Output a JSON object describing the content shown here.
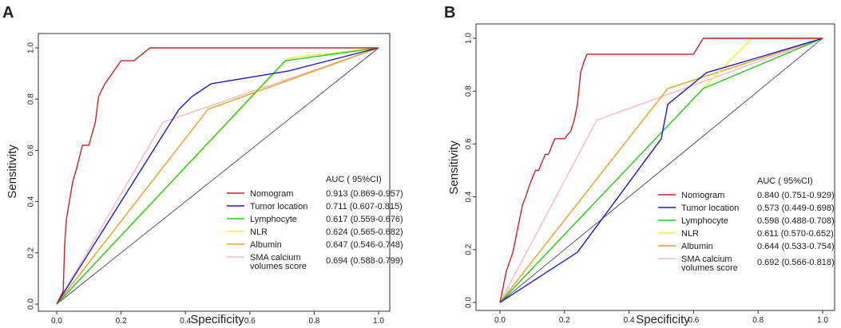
{
  "chart_data": [
    {
      "type": "line",
      "panel_label": "A",
      "xlabel": "Specificity",
      "ylabel": "Sensitivity",
      "xlim": [
        0,
        1
      ],
      "ylim": [
        0,
        1
      ],
      "xticks": [
        "0.0",
        "0.2",
        "0.4",
        "0.6",
        "0.8",
        "1.0"
      ],
      "yticks": [
        "0.0",
        "0.2",
        "0.4",
        "0.6",
        "0.8",
        "1.0"
      ],
      "legend_header": "AUC ( 95%CI)",
      "reference_line": {
        "x": [
          0,
          1
        ],
        "y": [
          0,
          1
        ],
        "color": "#333333"
      },
      "series": [
        {
          "name": "Nomogram",
          "auc": "0.913 (0.869-0.957)",
          "color": "#cc2222",
          "x": [
            0,
            0.02,
            0.025,
            0.03,
            0.05,
            0.06,
            0.08,
            0.1,
            0.12,
            0.13,
            0.15,
            0.2,
            0.24,
            0.29,
            1.0
          ],
          "y": [
            0,
            0.05,
            0.24,
            0.33,
            0.48,
            0.52,
            0.62,
            0.62,
            0.71,
            0.81,
            0.86,
            0.95,
            0.95,
            1.0,
            1.0
          ]
        },
        {
          "name": "Tumor location",
          "auc": "0.711 (0.607-0.815)",
          "color": "#1a1ad6",
          "x": [
            0,
            0.38,
            0.42,
            0.48,
            0.72,
            1.0
          ],
          "y": [
            0,
            0.76,
            0.81,
            0.86,
            0.91,
            1.0
          ]
        },
        {
          "name": "Lymphocyte",
          "auc": "0.617 (0.559-0.676)",
          "color": "#22cc22",
          "x": [
            0,
            0.71,
            1.0
          ],
          "y": [
            0,
            0.95,
            1.0
          ]
        },
        {
          "name": "NLR",
          "auc": "0.624 (0.565-0.682)",
          "color": "#f0f030",
          "x": [
            0,
            0.72,
            1.0
          ],
          "y": [
            0,
            0.96,
            1.0
          ]
        },
        {
          "name": "Albumin",
          "auc": "0.647 (0.546-0.748)",
          "color": "#e8a020",
          "x": [
            0,
            0.47,
            1.0
          ],
          "y": [
            0,
            0.76,
            1.0
          ]
        },
        {
          "name": "SMA calcium\nvolumes score",
          "auc": "0.694 (0.588-0.799)",
          "color": "#f4b8c8",
          "x": [
            0,
            0.33,
            1.0
          ],
          "y": [
            0,
            0.71,
            1.0
          ]
        }
      ]
    },
    {
      "type": "line",
      "panel_label": "B",
      "xlabel": "Specificity",
      "ylabel": "Sensitivity",
      "xlim": [
        0,
        1
      ],
      "ylim": [
        0,
        1
      ],
      "xticks": [
        "0.0",
        "0.2",
        "0.4",
        "0.6",
        "0.8",
        "1.0"
      ],
      "yticks": [
        "0.0",
        "0.2",
        "0.4",
        "0.6",
        "0.8",
        "1.0"
      ],
      "legend_header": "AUC ( 95%CI)",
      "reference_line": {
        "x": [
          0,
          1
        ],
        "y": [
          0,
          1
        ],
        "color": "#333333"
      },
      "series": [
        {
          "name": "Nomogram",
          "auc": "0.840 (0.751-0.929)",
          "color": "#cc2222",
          "x": [
            0,
            0.02,
            0.04,
            0.05,
            0.06,
            0.07,
            0.08,
            0.09,
            0.1,
            0.11,
            0.12,
            0.13,
            0.14,
            0.15,
            0.16,
            0.17,
            0.18,
            0.2,
            0.22,
            0.23,
            0.24,
            0.25,
            0.26,
            0.27,
            0.6,
            0.63,
            0.77,
            1.0
          ],
          "y": [
            0,
            0.12,
            0.19,
            0.25,
            0.31,
            0.37,
            0.4,
            0.44,
            0.47,
            0.5,
            0.5,
            0.53,
            0.56,
            0.56,
            0.59,
            0.62,
            0.62,
            0.62,
            0.65,
            0.69,
            0.75,
            0.87,
            0.91,
            0.94,
            0.94,
            1.0,
            1.0,
            1.0
          ]
        },
        {
          "name": "Tumor location",
          "auc": "0.573 (0.449-0.698)",
          "color": "#1a1ad6",
          "x": [
            0,
            0.24,
            0.5,
            0.52,
            0.64,
            0.78,
            1.0
          ],
          "y": [
            0,
            0.19,
            0.62,
            0.75,
            0.87,
            0.92,
            1.0
          ]
        },
        {
          "name": "Lymphocyte",
          "auc": "0.598 (0.488-0.708)",
          "color": "#22cc22",
          "x": [
            0,
            0.63,
            1.0
          ],
          "y": [
            0,
            0.81,
            1.0
          ]
        },
        {
          "name": "NLR",
          "auc": "0.611 (0.570-0.652)",
          "color": "#f0f030",
          "x": [
            0,
            0.63,
            0.78,
            1.0
          ],
          "y": [
            0,
            0.81,
            1.0,
            1.0
          ]
        },
        {
          "name": "Albumin",
          "auc": "0.644 (0.533-0.754)",
          "color": "#e8a020",
          "x": [
            0,
            0.52,
            1.0
          ],
          "y": [
            0,
            0.81,
            1.0
          ]
        },
        {
          "name": "SMA calcium\nvolumes score",
          "auc": "0.692 (0.566-0.818)",
          "color": "#f4b8c8",
          "x": [
            0,
            0.3,
            1.0
          ],
          "y": [
            0,
            0.69,
            1.0
          ]
        }
      ]
    }
  ]
}
